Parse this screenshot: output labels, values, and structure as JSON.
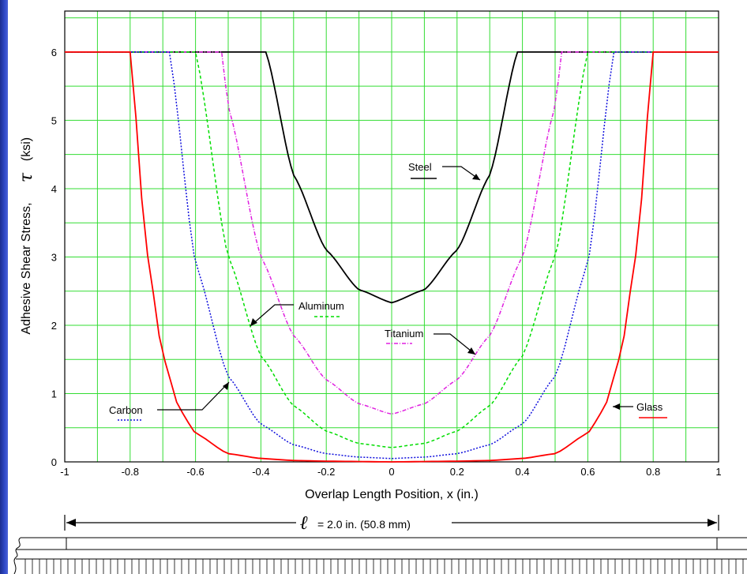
{
  "chart_data": {
    "type": "line",
    "title": "",
    "xlabel": "Overlap Length Position, x (in.)",
    "ylabel": "Adhesive Shear Stress,",
    "ylabel_symbol": "τ",
    "ylabel_unit": "(ksi)",
    "xlim": [
      -1,
      1
    ],
    "ylim": [
      0,
      6.6
    ],
    "xticks": [
      -1,
      -0.8,
      -0.6,
      -0.4,
      -0.2,
      0,
      0.2,
      0.4,
      0.6,
      0.8,
      1
    ],
    "xtick_labels": [
      "-1",
      "-0.8",
      "-0.6",
      "-0.4",
      "-0.2",
      "0",
      "0.2",
      "0.4",
      "0.6",
      "0.8",
      "1"
    ],
    "yticks": [
      0,
      1,
      2,
      3,
      4,
      5,
      6
    ],
    "ytick_labels": [
      "0",
      "1",
      "2",
      "3",
      "4",
      "5",
      "6"
    ],
    "grid": true,
    "grid_color": "#33dd33",
    "plateau": 6,
    "series": [
      {
        "name": "Steel",
        "color": "#000000",
        "dash": "solid",
        "min": 2.33,
        "plateau_start": 0.385,
        "points": [
          [
            0,
            2.33
          ],
          [
            0.1,
            2.52
          ],
          [
            0.2,
            3.1
          ],
          [
            0.3,
            4.2
          ],
          [
            0.385,
            6.0
          ]
        ]
      },
      {
        "name": "Titanium",
        "color": "#e020e0",
        "dash": "dashdot",
        "min": 0.7,
        "plateau_start": 0.52,
        "points": [
          [
            0,
            0.7
          ],
          [
            0.1,
            0.85
          ],
          [
            0.2,
            1.2
          ],
          [
            0.3,
            1.85
          ],
          [
            0.4,
            3.0
          ],
          [
            0.5,
            5.2
          ],
          [
            0.52,
            6.0
          ]
        ]
      },
      {
        "name": "Aluminum",
        "color": "#00dd00",
        "dash": "dashed",
        "min": 0.21,
        "plateau_start": 0.6,
        "points": [
          [
            0,
            0.21
          ],
          [
            0.1,
            0.27
          ],
          [
            0.2,
            0.45
          ],
          [
            0.3,
            0.82
          ],
          [
            0.4,
            1.55
          ],
          [
            0.5,
            3.0
          ],
          [
            0.6,
            6.0
          ]
        ]
      },
      {
        "name": "Carbon",
        "color": "#1010dd",
        "dash": "dotted",
        "min": 0.05,
        "plateau_start": 0.68,
        "points": [
          [
            0,
            0.05
          ],
          [
            0.1,
            0.07
          ],
          [
            0.2,
            0.12
          ],
          [
            0.3,
            0.25
          ],
          [
            0.4,
            0.55
          ],
          [
            0.5,
            1.25
          ],
          [
            0.6,
            2.9
          ],
          [
            0.68,
            6.0
          ]
        ]
      },
      {
        "name": "Glass",
        "color": "#ff0000",
        "dash": "solid",
        "min": 0.0,
        "plateau_start": 0.8,
        "points": [
          [
            0,
            0.0
          ],
          [
            0.2,
            0.01
          ],
          [
            0.3,
            0.02
          ],
          [
            0.4,
            0.05
          ],
          [
            0.5,
            0.12
          ],
          [
            0.6,
            0.42
          ],
          [
            0.65,
            0.78
          ],
          [
            0.7,
            1.55
          ],
          [
            0.75,
            3.1
          ],
          [
            0.8,
            6.0
          ]
        ]
      }
    ],
    "annotations": [
      {
        "text": "Steel",
        "series": "Steel"
      },
      {
        "text": "Titanium",
        "series": "Titanium"
      },
      {
        "text": "Aluminum",
        "series": "Aluminum"
      },
      {
        "text": "Carbon",
        "series": "Carbon"
      },
      {
        "text": "Glass",
        "series": "Glass"
      }
    ]
  },
  "dimension": {
    "symbol": "ℓ",
    "text": "= 2.0 in. (50.8 mm)"
  },
  "colors": {
    "slide_edge": "#2f49c8",
    "grid": "#33dd33"
  }
}
